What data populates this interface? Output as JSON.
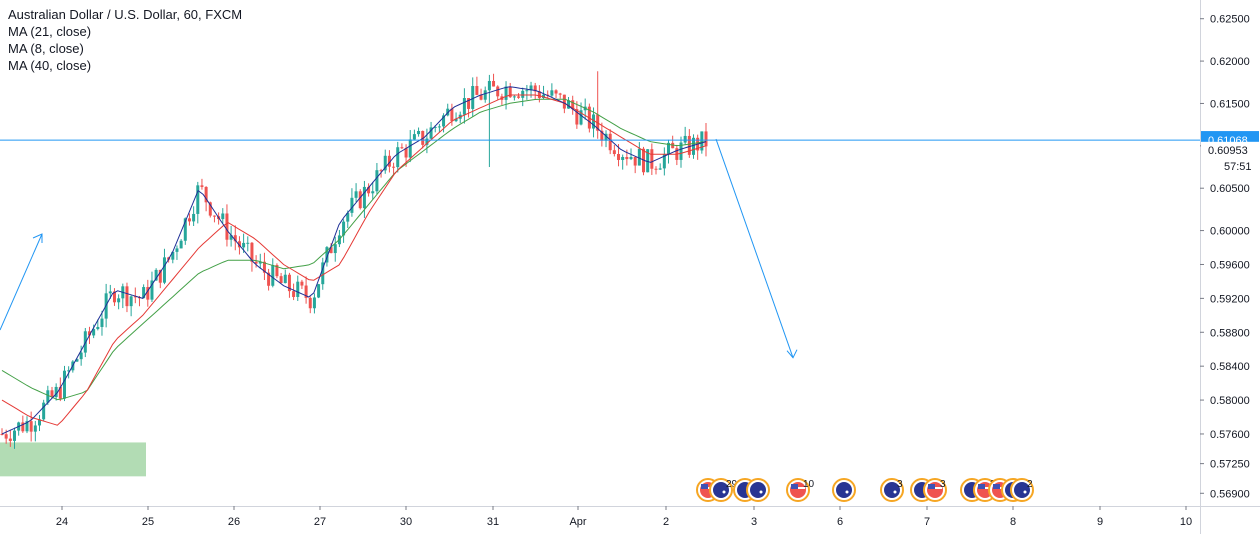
{
  "header": {
    "title": "Australian Dollar / U.S. Dollar, 60, FXCM",
    "indicators": [
      "MA (21, close)",
      "MA (8, close)",
      "MA (40, close)"
    ]
  },
  "colors": {
    "up": "#26a69a",
    "down": "#ef5350",
    "ma8": "#1e2f97",
    "ma21": "#e53935",
    "ma40": "#43a047",
    "line": "#2196f3",
    "zone": "#a5d6a7",
    "priceTag": "#2196f3"
  },
  "price_scale": {
    "ticks": [
      "0.62500",
      "0.62000",
      "0.61500",
      "0.61000",
      "0.60500",
      "0.60000",
      "0.59600",
      "0.59200",
      "0.58800",
      "0.58400",
      "0.58000",
      "0.57600",
      "0.57250",
      "0.56900"
    ],
    "current_price": "0.61068",
    "secondary_price": "0.60953",
    "countdown": "57:51"
  },
  "time_scale": {
    "labels": [
      "24",
      "25",
      "26",
      "27",
      "30",
      "31",
      "Apr",
      "2",
      "3",
      "6",
      "7",
      "8",
      "9",
      "10"
    ]
  },
  "events": [
    {
      "flags": [
        "us-flag",
        "au-flag"
      ],
      "count": "29"
    },
    {
      "flags": [
        "au-flag",
        "au-flag"
      ],
      "count": ""
    },
    {
      "flags": [
        "us-flag"
      ],
      "count": "10"
    },
    {
      "flags": [
        "au-flag"
      ],
      "count": ""
    },
    {
      "flags": [
        "au-flag"
      ],
      "count": "3"
    },
    {
      "flags": [
        "au-flag",
        "us-flag"
      ],
      "count": "3"
    },
    {
      "flags": [
        "au-flag",
        "us-flag"
      ],
      "count": "2"
    },
    {
      "flags": [
        "us-flag",
        "au-flag"
      ],
      "count": "8"
    },
    {
      "flags": [
        "au-flag"
      ],
      "count": "2"
    }
  ],
  "chart_data": {
    "type": "candlestick",
    "symbol": "AUDUSD",
    "timeframe": "60",
    "source": "FXCM",
    "ylim": [
      0.5675,
      0.6265
    ],
    "price_line": 0.61068,
    "support_zone": {
      "low": 0.571,
      "high": 0.575
    },
    "projection": {
      "from": 0.6108,
      "to": 0.585
    },
    "ma8_anchor_points": [
      0.576,
      0.5775,
      0.581,
      0.587,
      0.593,
      0.592,
      0.597,
      0.605,
      0.6,
      0.596,
      0.5935,
      0.592,
      0.601,
      0.605,
      0.609,
      0.611,
      0.6145,
      0.616,
      0.617,
      0.6165,
      0.615,
      0.6125,
      0.6095,
      0.608,
      0.6095,
      0.6105
    ],
    "ma21_anchor_points": [
      0.58,
      0.578,
      0.577,
      0.581,
      0.587,
      0.59,
      0.594,
      0.598,
      0.601,
      0.599,
      0.596,
      0.594,
      0.596,
      0.602,
      0.607,
      0.61,
      0.613,
      0.6145,
      0.616,
      0.616,
      0.615,
      0.613,
      0.611,
      0.609,
      0.609,
      0.61
    ],
    "ma40_anchor_points": [
      0.5835,
      0.5815,
      0.58,
      0.581,
      0.586,
      0.589,
      0.592,
      0.595,
      0.5965,
      0.5965,
      0.5955,
      0.596,
      0.599,
      0.603,
      0.607,
      0.6095,
      0.612,
      0.614,
      0.615,
      0.6155,
      0.6155,
      0.614,
      0.612,
      0.6105,
      0.61,
      0.6105
    ]
  }
}
